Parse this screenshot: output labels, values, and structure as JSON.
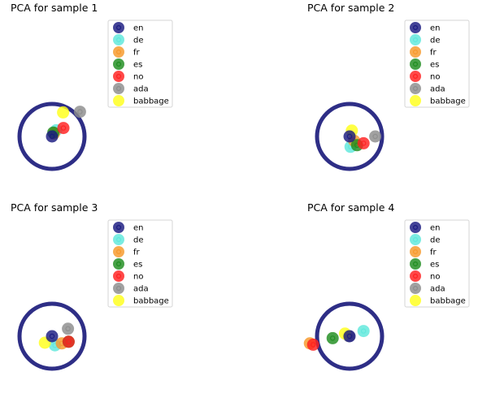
{
  "legend_labels": [
    "en",
    "de",
    "fr",
    "es",
    "no",
    "ada",
    "babbage"
  ],
  "colors": {
    "en": "#1a1a80",
    "de": "#5ee8dc",
    "fr": "#f7982a",
    "es": "#1e8c1e",
    "no": "#ff2020",
    "ada": "#8c8c8c",
    "babbage": "#ffff1a",
    "circle": "#2e2e86"
  },
  "chart_data": [
    {
      "type": "scatter",
      "title": "PCA for sample 1",
      "points": [
        {
          "label": "en",
          "x": 0.0,
          "y": 0.0
        },
        {
          "label": "de",
          "x": 0.13,
          "y": 0.19
        },
        {
          "label": "fr",
          "x": 0.06,
          "y": 0.09
        },
        {
          "label": "es",
          "x": 0.04,
          "y": 0.12
        },
        {
          "label": "no",
          "x": 0.35,
          "y": 0.26
        },
        {
          "label": "ada",
          "x": 0.86,
          "y": 0.76
        },
        {
          "label": "babbage",
          "x": 0.34,
          "y": 0.74
        }
      ]
    },
    {
      "type": "scatter",
      "title": "PCA for sample 2",
      "points": [
        {
          "label": "en",
          "x": 0.0,
          "y": 0.0
        },
        {
          "label": "de",
          "x": 0.03,
          "y": -0.32
        },
        {
          "label": "fr",
          "x": 0.14,
          "y": -0.13
        },
        {
          "label": "es",
          "x": 0.23,
          "y": -0.27
        },
        {
          "label": "no",
          "x": 0.43,
          "y": -0.21
        },
        {
          "label": "ada",
          "x": 0.79,
          "y": 0.0
        },
        {
          "label": "babbage",
          "x": 0.07,
          "y": 0.18
        }
      ]
    },
    {
      "type": "scatter",
      "title": "PCA for sample 3",
      "points": [
        {
          "label": "en",
          "x": 0.0,
          "y": 0.0
        },
        {
          "label": "de",
          "x": 0.09,
          "y": -0.28
        },
        {
          "label": "fr",
          "x": 0.3,
          "y": -0.22
        },
        {
          "label": "es",
          "x": 0.51,
          "y": -0.17
        },
        {
          "label": "no",
          "x": 0.51,
          "y": -0.17
        },
        {
          "label": "ada",
          "x": 0.49,
          "y": 0.23
        },
        {
          "label": "babbage",
          "x": -0.22,
          "y": -0.2
        }
      ]
    },
    {
      "type": "scatter",
      "title": "PCA for sample 4",
      "points": [
        {
          "label": "en",
          "x": 0.0,
          "y": 0.0
        },
        {
          "label": "de",
          "x": 0.43,
          "y": 0.16
        },
        {
          "label": "fr",
          "x": -1.22,
          "y": -0.22
        },
        {
          "label": "es",
          "x": -0.52,
          "y": -0.06
        },
        {
          "label": "no",
          "x": -1.12,
          "y": -0.26
        },
        {
          "label": "ada",
          "x": -0.02,
          "y": 0.0
        },
        {
          "label": "babbage",
          "x": -0.14,
          "y": 0.08
        }
      ]
    }
  ]
}
